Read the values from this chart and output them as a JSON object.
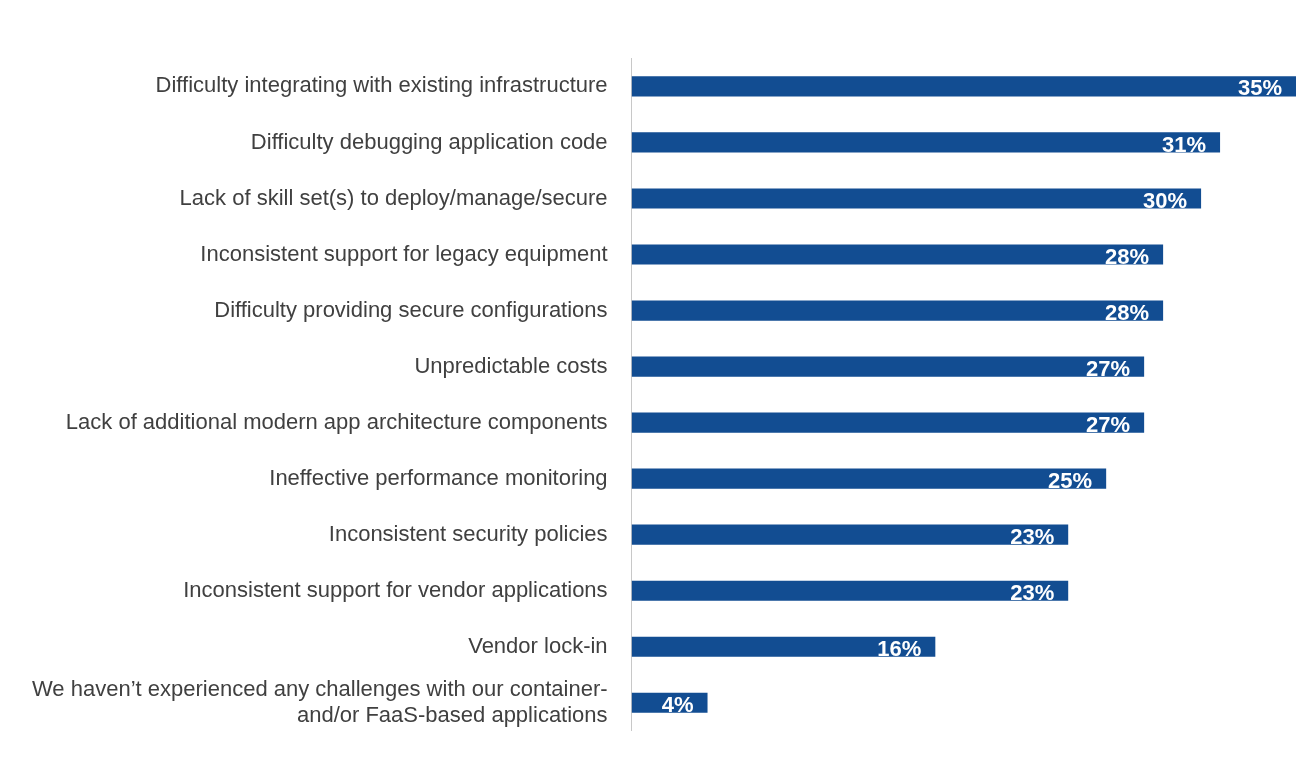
{
  "chart_data": {
    "type": "bar",
    "orientation": "horizontal",
    "categories": [
      "Difficulty integrating with existing infrastructure",
      "Difficulty debugging application code",
      "Lack of skill set(s) to deploy/manage/secure",
      "Inconsistent support for legacy equipment",
      "Difficulty providing secure configurations",
      "Unpredictable costs",
      "Lack of additional modern app architecture components",
      "Ineffective performance monitoring",
      "Inconsistent security policies",
      "Inconsistent support for vendor applications",
      "Vendor lock-in",
      "We haven’t experienced any challenges with our container- and/or FaaS-based applications"
    ],
    "values": [
      35,
      31,
      30,
      28,
      28,
      27,
      27,
      25,
      23,
      23,
      16,
      4
    ],
    "value_labels": [
      "35%",
      "31%",
      "30%",
      "28%",
      "28%",
      "27%",
      "27%",
      "25%",
      "23%",
      "23%",
      "16%",
      "4%"
    ],
    "color": "#124d92",
    "legend": false
  }
}
